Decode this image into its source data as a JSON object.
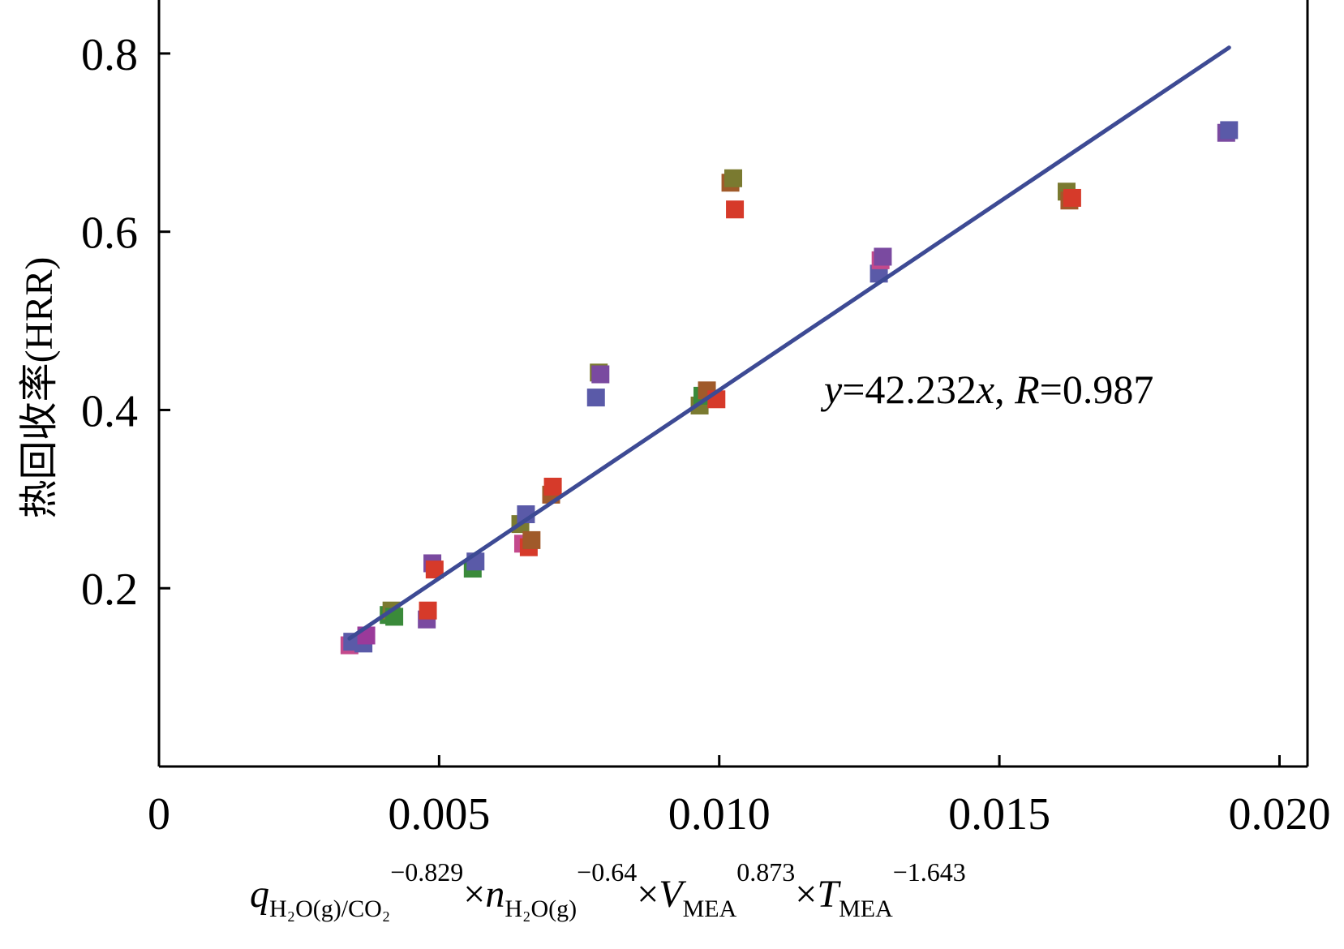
{
  "chart_data": {
    "type": "scatter",
    "title": "",
    "xlabel": {
      "q": "q",
      "q_sub": "H₂O(g)/CO₂",
      "q_exp": "−0.829",
      "times": "×",
      "n": "n",
      "n_sub": "H₂O(g)",
      "n_exp": "−0.64",
      "v": "V",
      "v_sub": "MEA",
      "v_exp": "0.873",
      "t": "T",
      "t_sub": "MEA",
      "t_exp": "−1.643"
    },
    "ylabel": "热回收率(HRR)",
    "xlim": [
      0,
      0.0205
    ],
    "ylim": [
      0,
      0.86
    ],
    "x_ticks": [
      0,
      0.005,
      0.01,
      0.015,
      0.02
    ],
    "x_tick_labels": [
      "0",
      "0.005",
      "0.010",
      "0.015",
      "0.020"
    ],
    "y_ticks": [
      0.2,
      0.4,
      0.6,
      0.8
    ],
    "y_tick_labels": [
      "0.2",
      "0.4",
      "0.6",
      "0.8"
    ],
    "grid": false,
    "legend": "none",
    "fit_line": {
      "slope": 42.232,
      "x_range": [
        0.0034,
        0.0191
      ],
      "color": "#3d4a94"
    },
    "annotation": {
      "y": "y",
      "eq_mid": "=42.232",
      "x": "x",
      "comma": ", ",
      "R": "R",
      "r_val": "=0.987"
    },
    "points": [
      {
        "x": 0.0034,
        "y": 0.136,
        "color": "#c44a8c"
      },
      {
        "x": 0.00345,
        "y": 0.14,
        "color": "#5a5aa8"
      },
      {
        "x": 0.00365,
        "y": 0.138,
        "color": "#5a5aa8"
      },
      {
        "x": 0.0037,
        "y": 0.147,
        "color": "#9a3a9a"
      },
      {
        "x": 0.0041,
        "y": 0.17,
        "color": "#3a8a3a"
      },
      {
        "x": 0.00415,
        "y": 0.175,
        "color": "#7a7a30"
      },
      {
        "x": 0.0042,
        "y": 0.168,
        "color": "#3a8a3a"
      },
      {
        "x": 0.00478,
        "y": 0.165,
        "color": "#7a4aa0"
      },
      {
        "x": 0.0048,
        "y": 0.175,
        "color": "#d63a2a"
      },
      {
        "x": 0.00488,
        "y": 0.228,
        "color": "#7a4aa0"
      },
      {
        "x": 0.00492,
        "y": 0.221,
        "color": "#d63a2a"
      },
      {
        "x": 0.0056,
        "y": 0.222,
        "color": "#3a8a3a"
      },
      {
        "x": 0.00565,
        "y": 0.23,
        "color": "#5a5aa8"
      },
      {
        "x": 0.00645,
        "y": 0.272,
        "color": "#7a7a30"
      },
      {
        "x": 0.0065,
        "y": 0.25,
        "color": "#c44a8c"
      },
      {
        "x": 0.00655,
        "y": 0.283,
        "color": "#5a5aa8"
      },
      {
        "x": 0.0066,
        "y": 0.246,
        "color": "#d63a2a"
      },
      {
        "x": 0.00665,
        "y": 0.254,
        "color": "#a05a2a"
      },
      {
        "x": 0.007,
        "y": 0.305,
        "color": "#a05a2a"
      },
      {
        "x": 0.00703,
        "y": 0.314,
        "color": "#d63a2a"
      },
      {
        "x": 0.0078,
        "y": 0.414,
        "color": "#5a5aa8"
      },
      {
        "x": 0.00785,
        "y": 0.442,
        "color": "#7a7a30"
      },
      {
        "x": 0.00788,
        "y": 0.44,
        "color": "#7a4aa0"
      },
      {
        "x": 0.00965,
        "y": 0.405,
        "color": "#7a7a30"
      },
      {
        "x": 0.0097,
        "y": 0.416,
        "color": "#3a8a3a"
      },
      {
        "x": 0.00978,
        "y": 0.422,
        "color": "#a05a2a"
      },
      {
        "x": 0.00995,
        "y": 0.412,
        "color": "#d63a2a"
      },
      {
        "x": 0.0102,
        "y": 0.655,
        "color": "#a05a2a"
      },
      {
        "x": 0.01025,
        "y": 0.66,
        "color": "#7a7a30"
      },
      {
        "x": 0.01028,
        "y": 0.625,
        "color": "#d63a2a"
      },
      {
        "x": 0.01285,
        "y": 0.553,
        "color": "#5a5aa8"
      },
      {
        "x": 0.01288,
        "y": 0.568,
        "color": "#c44a8c"
      },
      {
        "x": 0.01292,
        "y": 0.572,
        "color": "#7a4aa0"
      },
      {
        "x": 0.0162,
        "y": 0.645,
        "color": "#7a7a30"
      },
      {
        "x": 0.01625,
        "y": 0.635,
        "color": "#a05a2a"
      },
      {
        "x": 0.0163,
        "y": 0.638,
        "color": "#d63a2a"
      },
      {
        "x": 0.01905,
        "y": 0.711,
        "color": "#7a4aa0"
      },
      {
        "x": 0.0191,
        "y": 0.714,
        "color": "#5a5aa8"
      }
    ]
  }
}
